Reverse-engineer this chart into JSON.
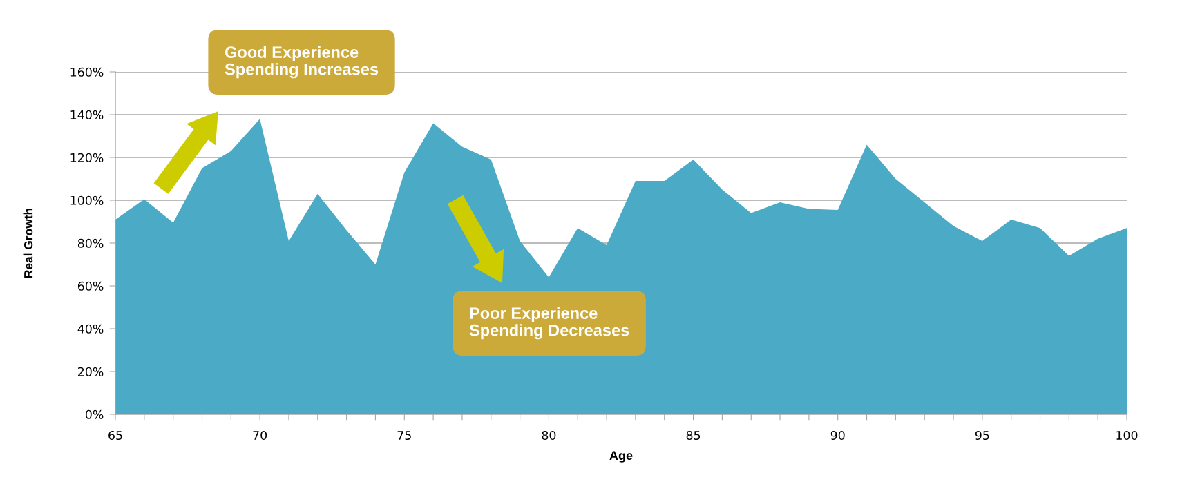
{
  "chart_data": {
    "type": "area",
    "xlabel": "Age",
    "ylabel": "Real Growth",
    "x": [
      65,
      66,
      67,
      68,
      69,
      70,
      71,
      72,
      73,
      74,
      75,
      76,
      77,
      78,
      79,
      80,
      81,
      82,
      83,
      84,
      85,
      86,
      87,
      88,
      89,
      90,
      91,
      92,
      93,
      94,
      95,
      96,
      97,
      98,
      99,
      100
    ],
    "series": [
      {
        "color": "#4babc6",
        "values": [
          91,
          100.5,
          89.5,
          115,
          123,
          138,
          81,
          103,
          86,
          70,
          113,
          136,
          125,
          119,
          81,
          64,
          87,
          79,
          109,
          109,
          119,
          105,
          94,
          99,
          96,
          95.5,
          126,
          110,
          99,
          88,
          81,
          91,
          87,
          74,
          82,
          87
        ]
      }
    ],
    "xlim": [
      65,
      100
    ],
    "xticks": [
      65,
      {
        "value": 66,
        "label": null
      },
      {
        "value": 67,
        "label": null
      },
      {
        "value": 68,
        "label": null
      },
      {
        "value": 69,
        "label": null
      },
      70,
      {
        "value": 71,
        "label": null
      },
      {
        "value": 72,
        "label": null
      },
      {
        "value": 73,
        "label": null
      },
      {
        "value": 74,
        "label": null
      },
      75,
      {
        "value": 76,
        "label": null
      },
      {
        "value": 77,
        "label": null
      },
      {
        "value": 78,
        "label": null
      },
      {
        "value": 79,
        "label": null
      },
      80,
      {
        "value": 81,
        "label": null
      },
      {
        "value": 82,
        "label": null
      },
      {
        "value": 83,
        "label": null
      },
      {
        "value": 84,
        "label": null
      },
      85,
      {
        "value": 86,
        "label": null
      },
      {
        "value": 87,
        "label": null
      },
      {
        "value": 88,
        "label": null
      },
      {
        "value": 89,
        "label": null
      },
      90,
      {
        "value": 91,
        "label": null
      },
      {
        "value": 92,
        "label": null
      },
      {
        "value": 93,
        "label": null
      },
      {
        "value": 94,
        "label": null
      },
      95,
      {
        "value": 96,
        "label": null
      },
      {
        "value": 97,
        "label": null
      },
      {
        "value": 98,
        "label": null
      },
      {
        "value": 99,
        "label": null
      },
      100
    ],
    "ylim": [
      0,
      160
    ],
    "yticks": [
      {
        "value": 0,
        "label": "0%"
      },
      {
        "value": 20,
        "label": "20%"
      },
      {
        "value": 40,
        "label": "40%"
      },
      {
        "value": 60,
        "label": "60%"
      },
      {
        "value": 80,
        "label": "80%"
      },
      {
        "value": 100,
        "label": "100%"
      },
      {
        "value": 120,
        "label": "120%"
      },
      {
        "value": 140,
        "label": "140%"
      },
      {
        "value": 160,
        "label": "160%"
      }
    ],
    "grid": "y",
    "annotations": [
      "Good Experience\nSpending Increases",
      "Poor Experience\nSpending Decreases"
    ]
  }
}
